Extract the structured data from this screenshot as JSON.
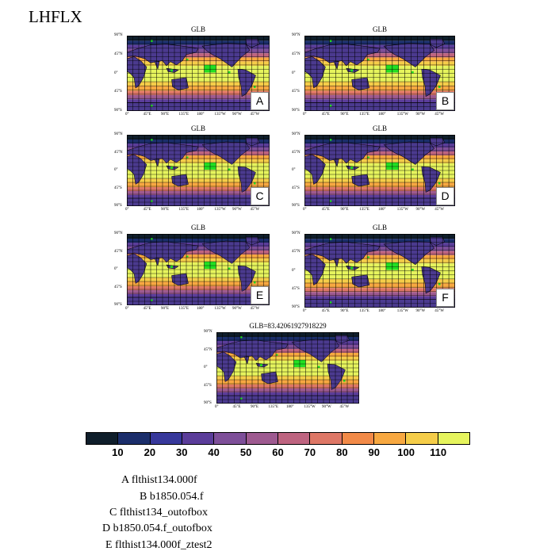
{
  "page_title": "LHFLX",
  "panels": [
    {
      "title": "GLB",
      "badge": "A"
    },
    {
      "title": "GLB",
      "badge": "B"
    },
    {
      "title": "GLB",
      "badge": "C"
    },
    {
      "title": "GLB",
      "badge": "D"
    },
    {
      "title": "GLB",
      "badge": "E"
    },
    {
      "title": "GLB",
      "badge": "F"
    },
    {
      "title": "GLB=83.42061927918229",
      "badge": ""
    }
  ],
  "lat_ticks": [
    "90°N",
    "45°N",
    "0°",
    "45°S",
    "90°S"
  ],
  "lon_ticks": [
    "0°",
    "45°E",
    "90°E",
    "135°E",
    "180°",
    "135°W",
    "90°W",
    "45°W"
  ],
  "colorbar": {
    "colors": [
      "#0f1e2b",
      "#1b2e6b",
      "#37389b",
      "#5b3d9a",
      "#7e4f99",
      "#9e5a90",
      "#be6480",
      "#de7766",
      "#f28a48",
      "#f7a841",
      "#f5cd49",
      "#e6f45d"
    ],
    "labels": [
      "10",
      "20",
      "30",
      "40",
      "50",
      "60",
      "70",
      "80",
      "90",
      "100",
      "110"
    ]
  },
  "legend": [
    "A  flthist134.000f",
    "B  b1850.054.f",
    "C  flthist134_outofbox",
    "D  b1850.054.f_outofbox",
    "E  flthist134.000f_ztest2"
  ]
}
